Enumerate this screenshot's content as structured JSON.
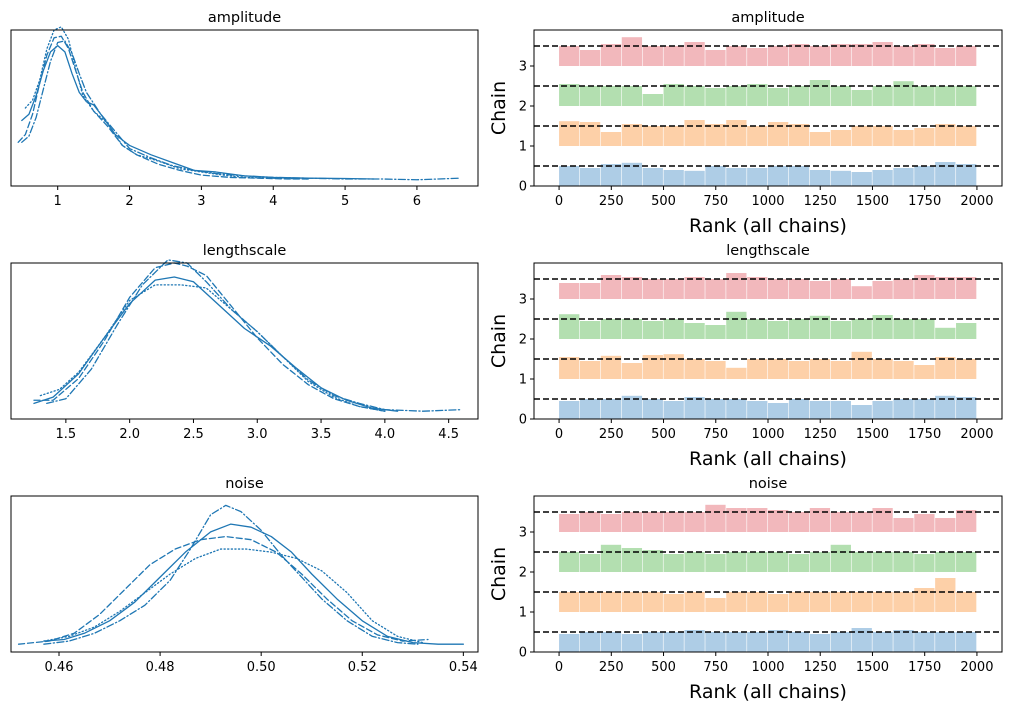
{
  "figure": {
    "colors": {
      "kde": "#1f77b4",
      "chains": [
        "#aecde6",
        "#fdd0a8",
        "#b3dfb0",
        "#f2b8bc"
      ],
      "ref": "#000000"
    },
    "chain_ticks": [
      "0",
      "1",
      "2",
      "3"
    ]
  },
  "chart_data": [
    {
      "type": "line",
      "name": "kde-amplitude",
      "title": "amplitude",
      "xlim": [
        0.35,
        6.85
      ],
      "ylim": [
        0,
        1
      ],
      "xticks": [
        1,
        2,
        3,
        4,
        5,
        6
      ],
      "xtick_labels": [
        "1",
        "2",
        "3",
        "4",
        "5",
        "6"
      ],
      "series": [
        {
          "name": "chain 0",
          "dash": "solid",
          "x": [
            0.5,
            0.6,
            0.7,
            0.8,
            0.9,
            1.0,
            1.1,
            1.2,
            1.3,
            1.4,
            1.5,
            1.6,
            1.8,
            2.0,
            2.3,
            2.6,
            2.9,
            3.2,
            3.6,
            4.0,
            4.5,
            5.0,
            5.4
          ],
          "y": [
            0.42,
            0.46,
            0.58,
            0.74,
            0.86,
            0.9,
            0.86,
            0.72,
            0.6,
            0.54,
            0.52,
            0.46,
            0.33,
            0.26,
            0.2,
            0.15,
            0.1,
            0.09,
            0.065,
            0.055,
            0.05,
            0.048,
            0.045
          ]
        },
        {
          "name": "chain 1",
          "dash": "dashed",
          "x": [
            0.45,
            0.55,
            0.65,
            0.75,
            0.85,
            0.95,
            1.05,
            1.15,
            1.25,
            1.35,
            1.5,
            1.7,
            1.9,
            2.1,
            2.4,
            2.7,
            3.0,
            3.4,
            3.8,
            4.2,
            4.5
          ],
          "y": [
            0.28,
            0.33,
            0.46,
            0.66,
            0.84,
            0.95,
            0.96,
            0.88,
            0.74,
            0.6,
            0.48,
            0.38,
            0.26,
            0.2,
            0.14,
            0.1,
            0.07,
            0.055,
            0.05,
            0.045,
            0.045
          ]
        },
        {
          "name": "chain 2",
          "dash": "dotted",
          "x": [
            0.55,
            0.65,
            0.75,
            0.85,
            0.95,
            1.05,
            1.15,
            1.25,
            1.35,
            1.5,
            1.7,
            1.9,
            2.1,
            2.4,
            2.7,
            3.0,
            3.3,
            3.6,
            4.0,
            4.5
          ],
          "y": [
            0.5,
            0.55,
            0.68,
            0.88,
            1.0,
            1.02,
            0.94,
            0.75,
            0.58,
            0.48,
            0.4,
            0.26,
            0.2,
            0.16,
            0.11,
            0.09,
            0.07,
            0.055,
            0.05,
            0.045
          ]
        },
        {
          "name": "chain 3",
          "dash": "dashdot",
          "x": [
            0.5,
            0.6,
            0.7,
            0.8,
            0.9,
            1.0,
            1.1,
            1.2,
            1.3,
            1.4,
            1.6,
            1.8,
            2.0,
            2.3,
            2.6,
            2.9,
            3.2,
            3.6,
            4.0,
            4.5,
            5.0,
            5.5,
            6.0,
            6.3,
            6.6
          ],
          "y": [
            0.28,
            0.32,
            0.44,
            0.62,
            0.8,
            0.92,
            0.93,
            0.85,
            0.72,
            0.6,
            0.46,
            0.35,
            0.24,
            0.18,
            0.13,
            0.1,
            0.08,
            0.065,
            0.055,
            0.05,
            0.045,
            0.045,
            0.04,
            0.045,
            0.05
          ]
        }
      ]
    },
    {
      "type": "bar",
      "name": "rank-amplitude",
      "title": "amplitude",
      "xlabel": "Rank (all chains)",
      "ylabel": "Chain",
      "xlim": [
        -120,
        2120
      ],
      "ylim": [
        0,
        3.9
      ],
      "xticks": [
        0,
        250,
        500,
        750,
        1000,
        1250,
        1500,
        1750,
        2000
      ],
      "xtick_labels": [
        "0",
        "250",
        "500",
        "750",
        "1000",
        "1250",
        "1500",
        "1750",
        "2000"
      ],
      "yticks": [
        0,
        1,
        2,
        3
      ],
      "reference_lines": [
        0.5,
        1.5,
        2.5,
        3.5
      ],
      "bin_width": 100,
      "chains": [
        [
          0.5,
          0.45,
          0.55,
          0.58,
          0.45,
          0.4,
          0.38,
          0.5,
          0.45,
          0.45,
          0.5,
          0.5,
          0.4,
          0.38,
          0.35,
          0.4,
          0.45,
          0.5,
          0.6,
          0.55
        ],
        [
          0.62,
          0.6,
          0.35,
          0.55,
          0.5,
          0.5,
          0.65,
          0.55,
          0.65,
          0.5,
          0.6,
          0.55,
          0.35,
          0.4,
          0.5,
          0.5,
          0.4,
          0.45,
          0.55,
          0.5
        ],
        [
          0.55,
          0.5,
          0.5,
          0.5,
          0.3,
          0.55,
          0.5,
          0.45,
          0.5,
          0.55,
          0.45,
          0.5,
          0.65,
          0.5,
          0.4,
          0.5,
          0.62,
          0.5,
          0.5,
          0.5
        ],
        [
          0.5,
          0.4,
          0.55,
          0.72,
          0.5,
          0.5,
          0.6,
          0.4,
          0.5,
          0.45,
          0.5,
          0.55,
          0.5,
          0.55,
          0.55,
          0.6,
          0.5,
          0.55,
          0.45,
          0.5
        ]
      ]
    },
    {
      "type": "line",
      "name": "kde-lengthscale",
      "title": "lengthscale",
      "xlim": [
        1.07,
        4.73
      ],
      "ylim": [
        0,
        1
      ],
      "xticks": [
        1.5,
        2.0,
        2.5,
        3.0,
        3.5,
        4.0,
        4.5
      ],
      "xtick_labels": [
        "1.5",
        "2.0",
        "2.5",
        "3.0",
        "3.5",
        "4.0",
        "4.5"
      ],
      "series": [
        {
          "name": "chain 0",
          "dash": "solid",
          "x": [
            1.25,
            1.4,
            1.6,
            1.8,
            2.0,
            2.2,
            2.35,
            2.5,
            2.7,
            2.9,
            3.1,
            3.3,
            3.5,
            3.7,
            3.9,
            4.1
          ],
          "y": [
            0.1,
            0.14,
            0.29,
            0.52,
            0.74,
            0.89,
            0.91,
            0.88,
            0.73,
            0.58,
            0.47,
            0.33,
            0.2,
            0.12,
            0.07,
            0.05
          ]
        },
        {
          "name": "chain 1",
          "dash": "dashed",
          "x": [
            1.25,
            1.4,
            1.6,
            1.8,
            2.0,
            2.2,
            2.35,
            2.45,
            2.6,
            2.8,
            3.0,
            3.2,
            3.4,
            3.6,
            3.8,
            4.0
          ],
          "y": [
            0.12,
            0.12,
            0.26,
            0.5,
            0.78,
            0.97,
            1.0,
            0.98,
            0.92,
            0.72,
            0.52,
            0.35,
            0.22,
            0.13,
            0.08,
            0.05
          ]
        },
        {
          "name": "chain 2",
          "dash": "dotted",
          "x": [
            1.3,
            1.45,
            1.6,
            1.8,
            2.0,
            2.2,
            2.4,
            2.6,
            2.8,
            3.0,
            3.2,
            3.4,
            3.6,
            3.8,
            4.0
          ],
          "y": [
            0.15,
            0.19,
            0.3,
            0.52,
            0.76,
            0.86,
            0.86,
            0.84,
            0.7,
            0.56,
            0.4,
            0.24,
            0.14,
            0.08,
            0.05
          ]
        },
        {
          "name": "chain 3",
          "dash": "dashdot",
          "x": [
            1.35,
            1.5,
            1.7,
            1.9,
            2.1,
            2.3,
            2.45,
            2.6,
            2.8,
            3.0,
            3.2,
            3.4,
            3.6,
            3.8,
            4.0,
            4.3,
            4.6
          ],
          "y": [
            0.1,
            0.13,
            0.32,
            0.6,
            0.86,
            1.02,
            1.0,
            0.88,
            0.7,
            0.56,
            0.4,
            0.25,
            0.15,
            0.1,
            0.06,
            0.05,
            0.06
          ]
        }
      ]
    },
    {
      "type": "bar",
      "name": "rank-lengthscale",
      "title": "lengthscale",
      "xlabel": "Rank (all chains)",
      "ylabel": "Chain",
      "xlim": [
        -120,
        2120
      ],
      "ylim": [
        0,
        3.9
      ],
      "xticks": [
        0,
        250,
        500,
        750,
        1000,
        1250,
        1500,
        1750,
        2000
      ],
      "xtick_labels": [
        "0",
        "250",
        "500",
        "750",
        "1000",
        "1250",
        "1500",
        "1750",
        "2000"
      ],
      "yticks": [
        0,
        1,
        2,
        3
      ],
      "reference_lines": [
        0.5,
        1.5,
        2.5,
        3.5
      ],
      "bin_width": 100,
      "chains": [
        [
          0.45,
          0.5,
          0.5,
          0.58,
          0.5,
          0.45,
          0.55,
          0.5,
          0.5,
          0.45,
          0.4,
          0.5,
          0.45,
          0.45,
          0.35,
          0.45,
          0.5,
          0.5,
          0.58,
          0.55
        ],
        [
          0.55,
          0.45,
          0.58,
          0.4,
          0.6,
          0.62,
          0.5,
          0.45,
          0.28,
          0.5,
          0.5,
          0.45,
          0.5,
          0.45,
          0.68,
          0.5,
          0.45,
          0.35,
          0.55,
          0.5
        ],
        [
          0.62,
          0.45,
          0.5,
          0.5,
          0.45,
          0.5,
          0.4,
          0.35,
          0.68,
          0.5,
          0.45,
          0.5,
          0.58,
          0.45,
          0.5,
          0.6,
          0.5,
          0.5,
          0.28,
          0.4
        ],
        [
          0.4,
          0.4,
          0.6,
          0.55,
          0.5,
          0.5,
          0.55,
          0.5,
          0.65,
          0.55,
          0.5,
          0.5,
          0.45,
          0.5,
          0.32,
          0.45,
          0.5,
          0.6,
          0.55,
          0.55
        ]
      ]
    },
    {
      "type": "line",
      "name": "kde-noise",
      "title": "noise",
      "xlim": [
        0.4505,
        0.5429
      ],
      "ylim": [
        0,
        1
      ],
      "xticks": [
        0.46,
        0.48,
        0.5,
        0.52,
        0.54
      ],
      "xtick_labels": [
        "0.46",
        "0.48",
        "0.50",
        "0.52",
        "0.54"
      ],
      "series": [
        {
          "name": "chain 0",
          "dash": "solid",
          "x": [
            0.457,
            0.461,
            0.465,
            0.47,
            0.475,
            0.48,
            0.485,
            0.49,
            0.494,
            0.498,
            0.502,
            0.506,
            0.51,
            0.515,
            0.52,
            0.525,
            0.53,
            0.535,
            0.54
          ],
          "y": [
            0.07,
            0.08,
            0.12,
            0.2,
            0.32,
            0.48,
            0.64,
            0.77,
            0.82,
            0.8,
            0.74,
            0.64,
            0.5,
            0.34,
            0.2,
            0.1,
            0.06,
            0.05,
            0.05
          ]
        },
        {
          "name": "chain 1",
          "dash": "dashed",
          "x": [
            0.452,
            0.458,
            0.463,
            0.468,
            0.473,
            0.478,
            0.483,
            0.488,
            0.493,
            0.498,
            0.503,
            0.508,
            0.513,
            0.518,
            0.523,
            0.528,
            0.533
          ],
          "y": [
            0.05,
            0.07,
            0.12,
            0.24,
            0.4,
            0.56,
            0.66,
            0.72,
            0.74,
            0.72,
            0.64,
            0.5,
            0.34,
            0.2,
            0.11,
            0.07,
            0.08
          ]
        },
        {
          "name": "chain 2",
          "dash": "dotted",
          "x": [
            0.457,
            0.462,
            0.467,
            0.472,
            0.477,
            0.482,
            0.487,
            0.492,
            0.497,
            0.502,
            0.507,
            0.512,
            0.517,
            0.522,
            0.527,
            0.532
          ],
          "y": [
            0.07,
            0.1,
            0.16,
            0.26,
            0.38,
            0.5,
            0.6,
            0.66,
            0.66,
            0.64,
            0.6,
            0.52,
            0.38,
            0.2,
            0.1,
            0.06
          ]
        },
        {
          "name": "chain 3",
          "dash": "dashdot",
          "x": [
            0.457,
            0.462,
            0.467,
            0.472,
            0.477,
            0.482,
            0.486,
            0.49,
            0.493,
            0.496,
            0.5,
            0.504,
            0.508,
            0.512,
            0.517,
            0.522,
            0.527,
            0.531
          ],
          "y": [
            0.05,
            0.07,
            0.12,
            0.2,
            0.3,
            0.46,
            0.66,
            0.88,
            0.94,
            0.9,
            0.78,
            0.62,
            0.48,
            0.34,
            0.2,
            0.1,
            0.06,
            0.05
          ]
        }
      ]
    },
    {
      "type": "bar",
      "name": "rank-noise",
      "title": "noise",
      "xlabel": "Rank (all chains)",
      "ylabel": "Chain",
      "xlim": [
        -120,
        2120
      ],
      "ylim": [
        0,
        3.9
      ],
      "xticks": [
        0,
        250,
        500,
        750,
        1000,
        1250,
        1500,
        1750,
        2000
      ],
      "xtick_labels": [
        "0",
        "250",
        "500",
        "750",
        "1000",
        "1250",
        "1500",
        "1750",
        "2000"
      ],
      "yticks": [
        0,
        1,
        2,
        3
      ],
      "reference_lines": [
        0.5,
        1.5,
        2.5,
        3.5
      ],
      "bin_width": 100,
      "chains": [
        [
          0.45,
          0.5,
          0.5,
          0.45,
          0.5,
          0.5,
          0.55,
          0.5,
          0.5,
          0.5,
          0.55,
          0.5,
          0.45,
          0.5,
          0.6,
          0.5,
          0.55,
          0.5,
          0.5,
          0.5
        ],
        [
          0.5,
          0.5,
          0.5,
          0.5,
          0.5,
          0.45,
          0.5,
          0.35,
          0.5,
          0.5,
          0.45,
          0.5,
          0.5,
          0.5,
          0.5,
          0.5,
          0.5,
          0.6,
          0.85,
          0.5
        ],
        [
          0.5,
          0.45,
          0.68,
          0.6,
          0.55,
          0.45,
          0.5,
          0.45,
          0.5,
          0.5,
          0.5,
          0.45,
          0.5,
          0.68,
          0.5,
          0.5,
          0.5,
          0.45,
          0.5,
          0.5
        ],
        [
          0.45,
          0.5,
          0.45,
          0.5,
          0.5,
          0.5,
          0.5,
          0.68,
          0.6,
          0.6,
          0.55,
          0.5,
          0.6,
          0.5,
          0.5,
          0.6,
          0.35,
          0.45,
          0.35,
          0.55
        ]
      ]
    }
  ]
}
